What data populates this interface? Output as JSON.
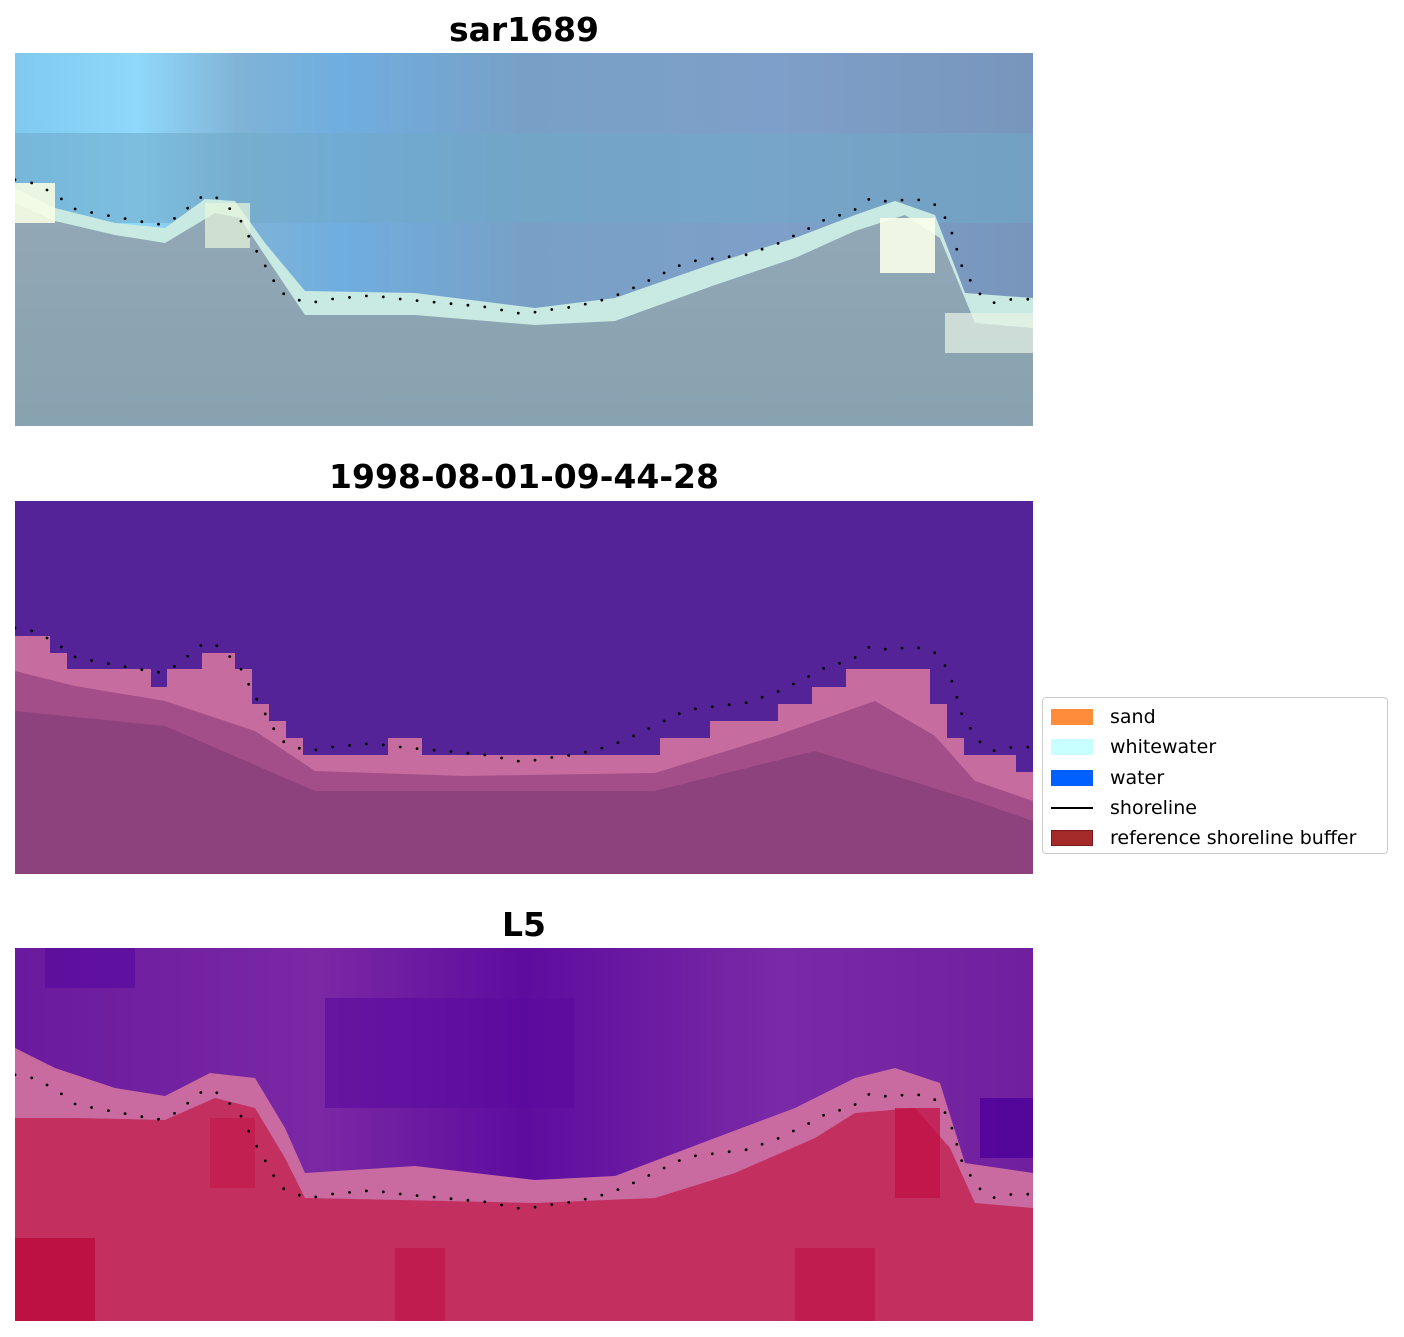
{
  "chart_data": [
    {
      "type": "heatmap",
      "title": "sar1689",
      "image": "RGB satellite composite",
      "palette": [
        "#8fd8fb",
        "#78a0c6",
        "#6fa9c8",
        "#f6fde4",
        "#c9e9e3",
        "#8c9db1",
        "#87a2b0"
      ],
      "shoreline": {
        "style": "dotted",
        "color": "#000000",
        "x": [
          0,
          0.02,
          0.04,
          0.06,
          0.08,
          0.1,
          0.12,
          0.14,
          0.16,
          0.18,
          0.19,
          0.2,
          0.22,
          0.235,
          0.25,
          0.26,
          0.275,
          0.29,
          0.31,
          0.35,
          0.38,
          0.42,
          0.46,
          0.5,
          0.52,
          0.55,
          0.58,
          0.6,
          0.63,
          0.66,
          0.69,
          0.72,
          0.75,
          0.78,
          0.8,
          0.82,
          0.84,
          0.86,
          0.88,
          0.9,
          0.91,
          0.92,
          0.93,
          0.945,
          0.96,
          0.98,
          1.0
        ],
        "y": [
          0.34,
          0.35,
          0.38,
          0.42,
          0.43,
          0.44,
          0.45,
          0.46,
          0.44,
          0.39,
          0.38,
          0.39,
          0.44,
          0.52,
          0.59,
          0.64,
          0.66,
          0.67,
          0.66,
          0.65,
          0.66,
          0.67,
          0.68,
          0.7,
          0.69,
          0.68,
          0.66,
          0.64,
          0.6,
          0.56,
          0.55,
          0.54,
          0.51,
          0.47,
          0.44,
          0.43,
          0.39,
          0.4,
          0.39,
          0.4,
          0.42,
          0.48,
          0.57,
          0.64,
          0.67,
          0.66,
          0.66
        ]
      }
    },
    {
      "type": "heatmap",
      "title": "1998-08-01-09-44-28",
      "image": "classified image",
      "palette": [
        "#542398",
        "#c66c9e",
        "#a34e89",
        "#8e427d",
        "#8a3f7a"
      ],
      "shoreline": {
        "style": "dotted",
        "color": "#000000",
        "x": [
          0,
          0.02,
          0.04,
          0.06,
          0.08,
          0.1,
          0.12,
          0.14,
          0.16,
          0.18,
          0.19,
          0.2,
          0.22,
          0.235,
          0.25,
          0.26,
          0.275,
          0.29,
          0.31,
          0.35,
          0.38,
          0.42,
          0.46,
          0.5,
          0.52,
          0.55,
          0.58,
          0.6,
          0.63,
          0.66,
          0.69,
          0.72,
          0.75,
          0.78,
          0.8,
          0.82,
          0.84,
          0.86,
          0.88,
          0.9,
          0.91,
          0.92,
          0.93,
          0.945,
          0.96,
          0.98,
          1.0
        ],
        "y": [
          0.34,
          0.35,
          0.38,
          0.42,
          0.43,
          0.44,
          0.45,
          0.46,
          0.44,
          0.39,
          0.38,
          0.39,
          0.44,
          0.52,
          0.59,
          0.64,
          0.66,
          0.67,
          0.66,
          0.65,
          0.66,
          0.67,
          0.68,
          0.7,
          0.69,
          0.68,
          0.66,
          0.64,
          0.6,
          0.56,
          0.55,
          0.54,
          0.51,
          0.47,
          0.44,
          0.43,
          0.39,
          0.4,
          0.39,
          0.4,
          0.42,
          0.48,
          0.57,
          0.64,
          0.67,
          0.66,
          0.66
        ]
      }
    },
    {
      "type": "heatmap",
      "title": "L5",
      "image": "index image",
      "palette": [
        "#6a1a9e",
        "#5a0a9e",
        "#8a2ca0",
        "#c96aa0",
        "#c21d4e",
        "#c3305f",
        "#ba0a3a"
      ],
      "shoreline": {
        "style": "dotted",
        "color": "#000000",
        "x": [
          0,
          0.02,
          0.04,
          0.06,
          0.08,
          0.1,
          0.12,
          0.14,
          0.16,
          0.18,
          0.19,
          0.2,
          0.22,
          0.235,
          0.25,
          0.26,
          0.275,
          0.29,
          0.31,
          0.35,
          0.38,
          0.42,
          0.46,
          0.5,
          0.52,
          0.55,
          0.58,
          0.6,
          0.63,
          0.66,
          0.69,
          0.72,
          0.75,
          0.78,
          0.8,
          0.82,
          0.84,
          0.86,
          0.88,
          0.9,
          0.91,
          0.92,
          0.93,
          0.945,
          0.96,
          0.98,
          1.0
        ],
        "y": [
          0.34,
          0.35,
          0.38,
          0.42,
          0.43,
          0.44,
          0.45,
          0.46,
          0.44,
          0.39,
          0.38,
          0.39,
          0.44,
          0.52,
          0.59,
          0.64,
          0.66,
          0.67,
          0.66,
          0.65,
          0.66,
          0.67,
          0.68,
          0.7,
          0.69,
          0.68,
          0.66,
          0.64,
          0.6,
          0.56,
          0.55,
          0.54,
          0.51,
          0.47,
          0.44,
          0.43,
          0.39,
          0.4,
          0.39,
          0.4,
          0.42,
          0.48,
          0.57,
          0.64,
          0.67,
          0.66,
          0.66
        ]
      }
    }
  ],
  "legend": {
    "placement": "right",
    "items": [
      {
        "label": "sand",
        "kind": "patch",
        "color": "#ff8c3a"
      },
      {
        "label": "whitewater",
        "kind": "patch",
        "color": "#c8ffff"
      },
      {
        "label": "water",
        "kind": "patch",
        "color": "#0060ff"
      },
      {
        "label": "shoreline",
        "kind": "line",
        "color": "#000000"
      },
      {
        "label": "reference shoreline buffer",
        "kind": "patch",
        "color": "#a52a2a",
        "edge": "#7a1a1a"
      }
    ]
  }
}
